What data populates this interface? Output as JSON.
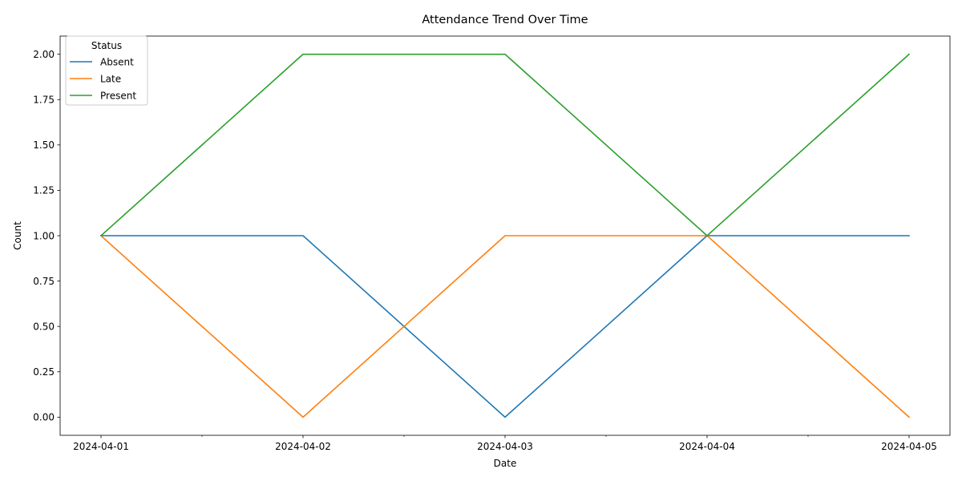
{
  "chart_data": {
    "type": "line",
    "title": "Attendance Trend Over Time",
    "xlabel": "Date",
    "ylabel": "Count",
    "categories": [
      "2024-04-01",
      "2024-04-02",
      "2024-04-03",
      "2024-04-04",
      "2024-04-05"
    ],
    "ylim": [
      -0.1,
      2.1
    ],
    "yticks": [
      "0.00",
      "0.25",
      "0.50",
      "0.75",
      "1.00",
      "1.25",
      "1.50",
      "1.75",
      "2.00"
    ],
    "legend": {
      "title": "Status",
      "placement": "top-left"
    },
    "grid": false,
    "series": [
      {
        "name": "Absent",
        "color": "#1f77b4",
        "values": [
          1,
          1,
          0,
          1,
          1
        ]
      },
      {
        "name": "Late",
        "color": "#ff7f0e",
        "values": [
          1,
          0,
          1,
          1,
          0
        ]
      },
      {
        "name": "Present",
        "color": "#2ca02c",
        "values": [
          1,
          2,
          2,
          1,
          2
        ]
      }
    ]
  }
}
